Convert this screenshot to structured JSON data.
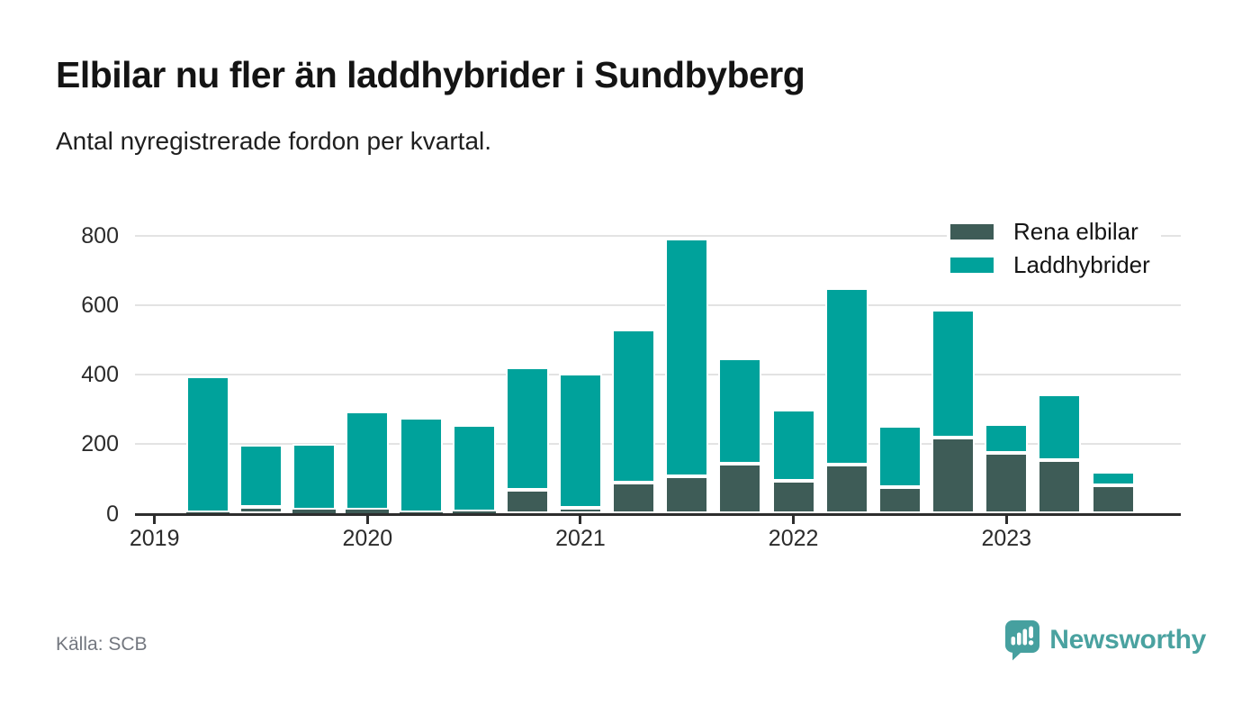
{
  "header": {
    "title": "Elbilar nu fler än laddhybrider i Sundbyberg",
    "subtitle": "Antal nyregistrerade fordon per kvartal."
  },
  "footer": {
    "source": "Källa: SCB",
    "brand": "Newsworthy"
  },
  "colors": {
    "rena_elbilar": "#3e5c57",
    "laddhybrider": "#00a29b",
    "brand_teal": "#4aa2a0",
    "axis": "#2d2d2d",
    "grid": "#e3e3e3"
  },
  "chart_data": {
    "type": "bar",
    "stacked": true,
    "title": "Elbilar nu fler än laddhybrider i Sundbyberg",
    "subtitle": "Antal nyregistrerade fordon per kvartal.",
    "source": "SCB",
    "categories": [
      "2019 Q2",
      "2019 Q3",
      "2019 Q4",
      "2020 Q1",
      "2020 Q2",
      "2020 Q3",
      "2020 Q4",
      "2021 Q1",
      "2021 Q2",
      "2021 Q3",
      "2021 Q4",
      "2022 Q1",
      "2022 Q2",
      "2022 Q3",
      "2022 Q4",
      "2023 Q1",
      "2023 Q2",
      "2023 Q3"
    ],
    "series": [
      {
        "name": "Rena elbilar",
        "color": "#3e5c57",
        "values": [
          5,
          20,
          11,
          12,
          3,
          7,
          68,
          18,
          90,
          108,
          145,
          94,
          142,
          76,
          218,
          176,
          154,
          82
        ]
      },
      {
        "name": "Laddhybrider",
        "color": "#00a29b",
        "values": [
          390,
          177,
          191,
          283,
          274,
          248,
          352,
          384,
          440,
          684,
          302,
          206,
          507,
          176,
          370,
          81,
          189,
          38
        ]
      }
    ],
    "stacked_totals": [
      395,
      197,
      202,
      295,
      277,
      255,
      420,
      402,
      530,
      792,
      447,
      300,
      649,
      252,
      588,
      257,
      343,
      120
    ],
    "ylim": [
      0,
      800
    ],
    "yticks": [
      0,
      200,
      400,
      600,
      800
    ],
    "x_tick_labels": [
      "2019",
      "2020",
      "2021",
      "2022",
      "2023"
    ],
    "legend_position": "top-right",
    "grid": "horizontal"
  }
}
